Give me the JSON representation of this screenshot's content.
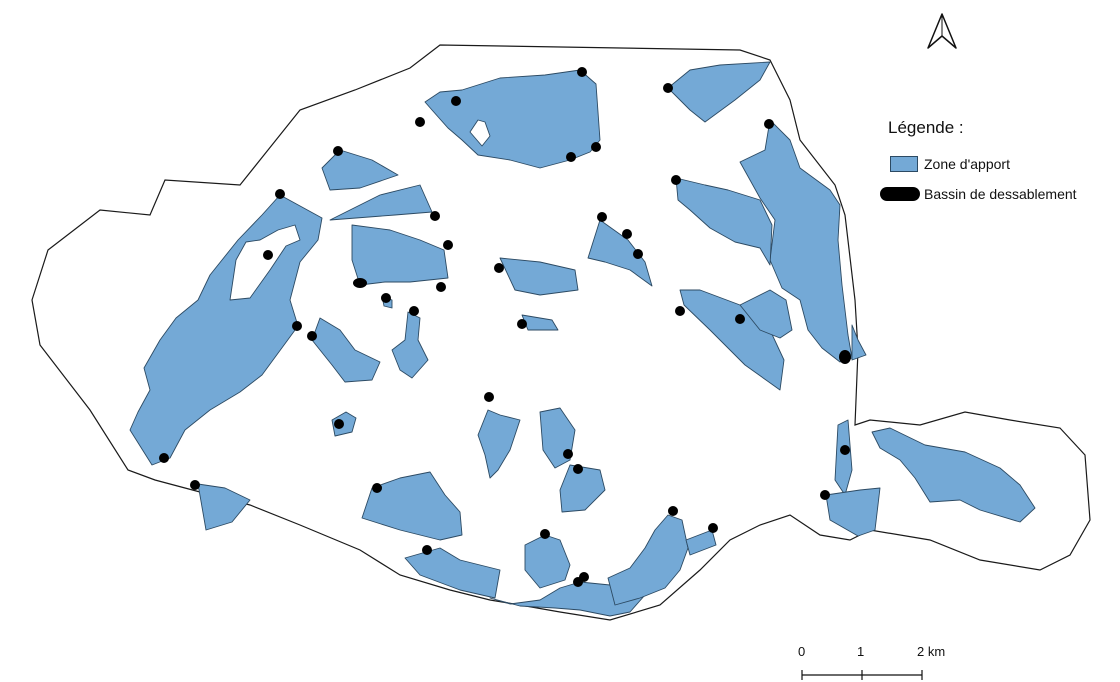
{
  "legend": {
    "title": "Légende :",
    "zone_label": "Zone d'apport",
    "basin_label": "Bassin de dessablement"
  },
  "scale": {
    "label_0": "0",
    "label_1": "1",
    "label_2": "2 km"
  },
  "colors": {
    "zone_fill": "#74a9d6",
    "zone_stroke": "#2c4a63",
    "boundary_stroke": "#1a1a1a",
    "basin_fill": "#000000"
  },
  "icons": {
    "north_arrow": "north-arrow-icon"
  }
}
